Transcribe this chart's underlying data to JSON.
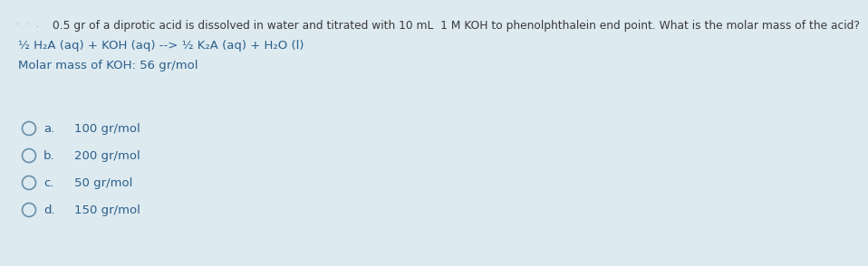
{
  "background_color": "#ddeaf0",
  "question_text": "0.5 gr of a diprotic acid is dissolved in water and titrated with 10 mL  1 M KOH to phenolphthalein end point. What is the molar mass of the acid?",
  "dots_text": "·   ·  .",
  "equation_line": "½ H₂A (aq) + KOH (aq) --> ½ K₂A (aq) + H₂O (l)",
  "molar_mass_line": "Molar mass of KOH: 56 gr/mol",
  "options": [
    {
      "label": "a.",
      "text": "100 gr/mol"
    },
    {
      "label": "b.",
      "text": "200 gr/mol"
    },
    {
      "label": "c.",
      "text": "50 gr/mol"
    },
    {
      "label": "d.",
      "text": "150 gr/mol"
    }
  ],
  "text_color": "#3a3a3a",
  "equation_color": "#2c5f8a",
  "molar_color": "#2c5f8a",
  "option_label_color": "#2c5f8a",
  "option_text_color": "#2c5f8a",
  "circle_color": "#6a8fa8",
  "question_fontsize": 8.8,
  "equation_fontsize": 9.5,
  "molar_fontsize": 9.5,
  "option_fontsize": 9.5,
  "dots_color": "#888888",
  "dots_fontsize": 7
}
